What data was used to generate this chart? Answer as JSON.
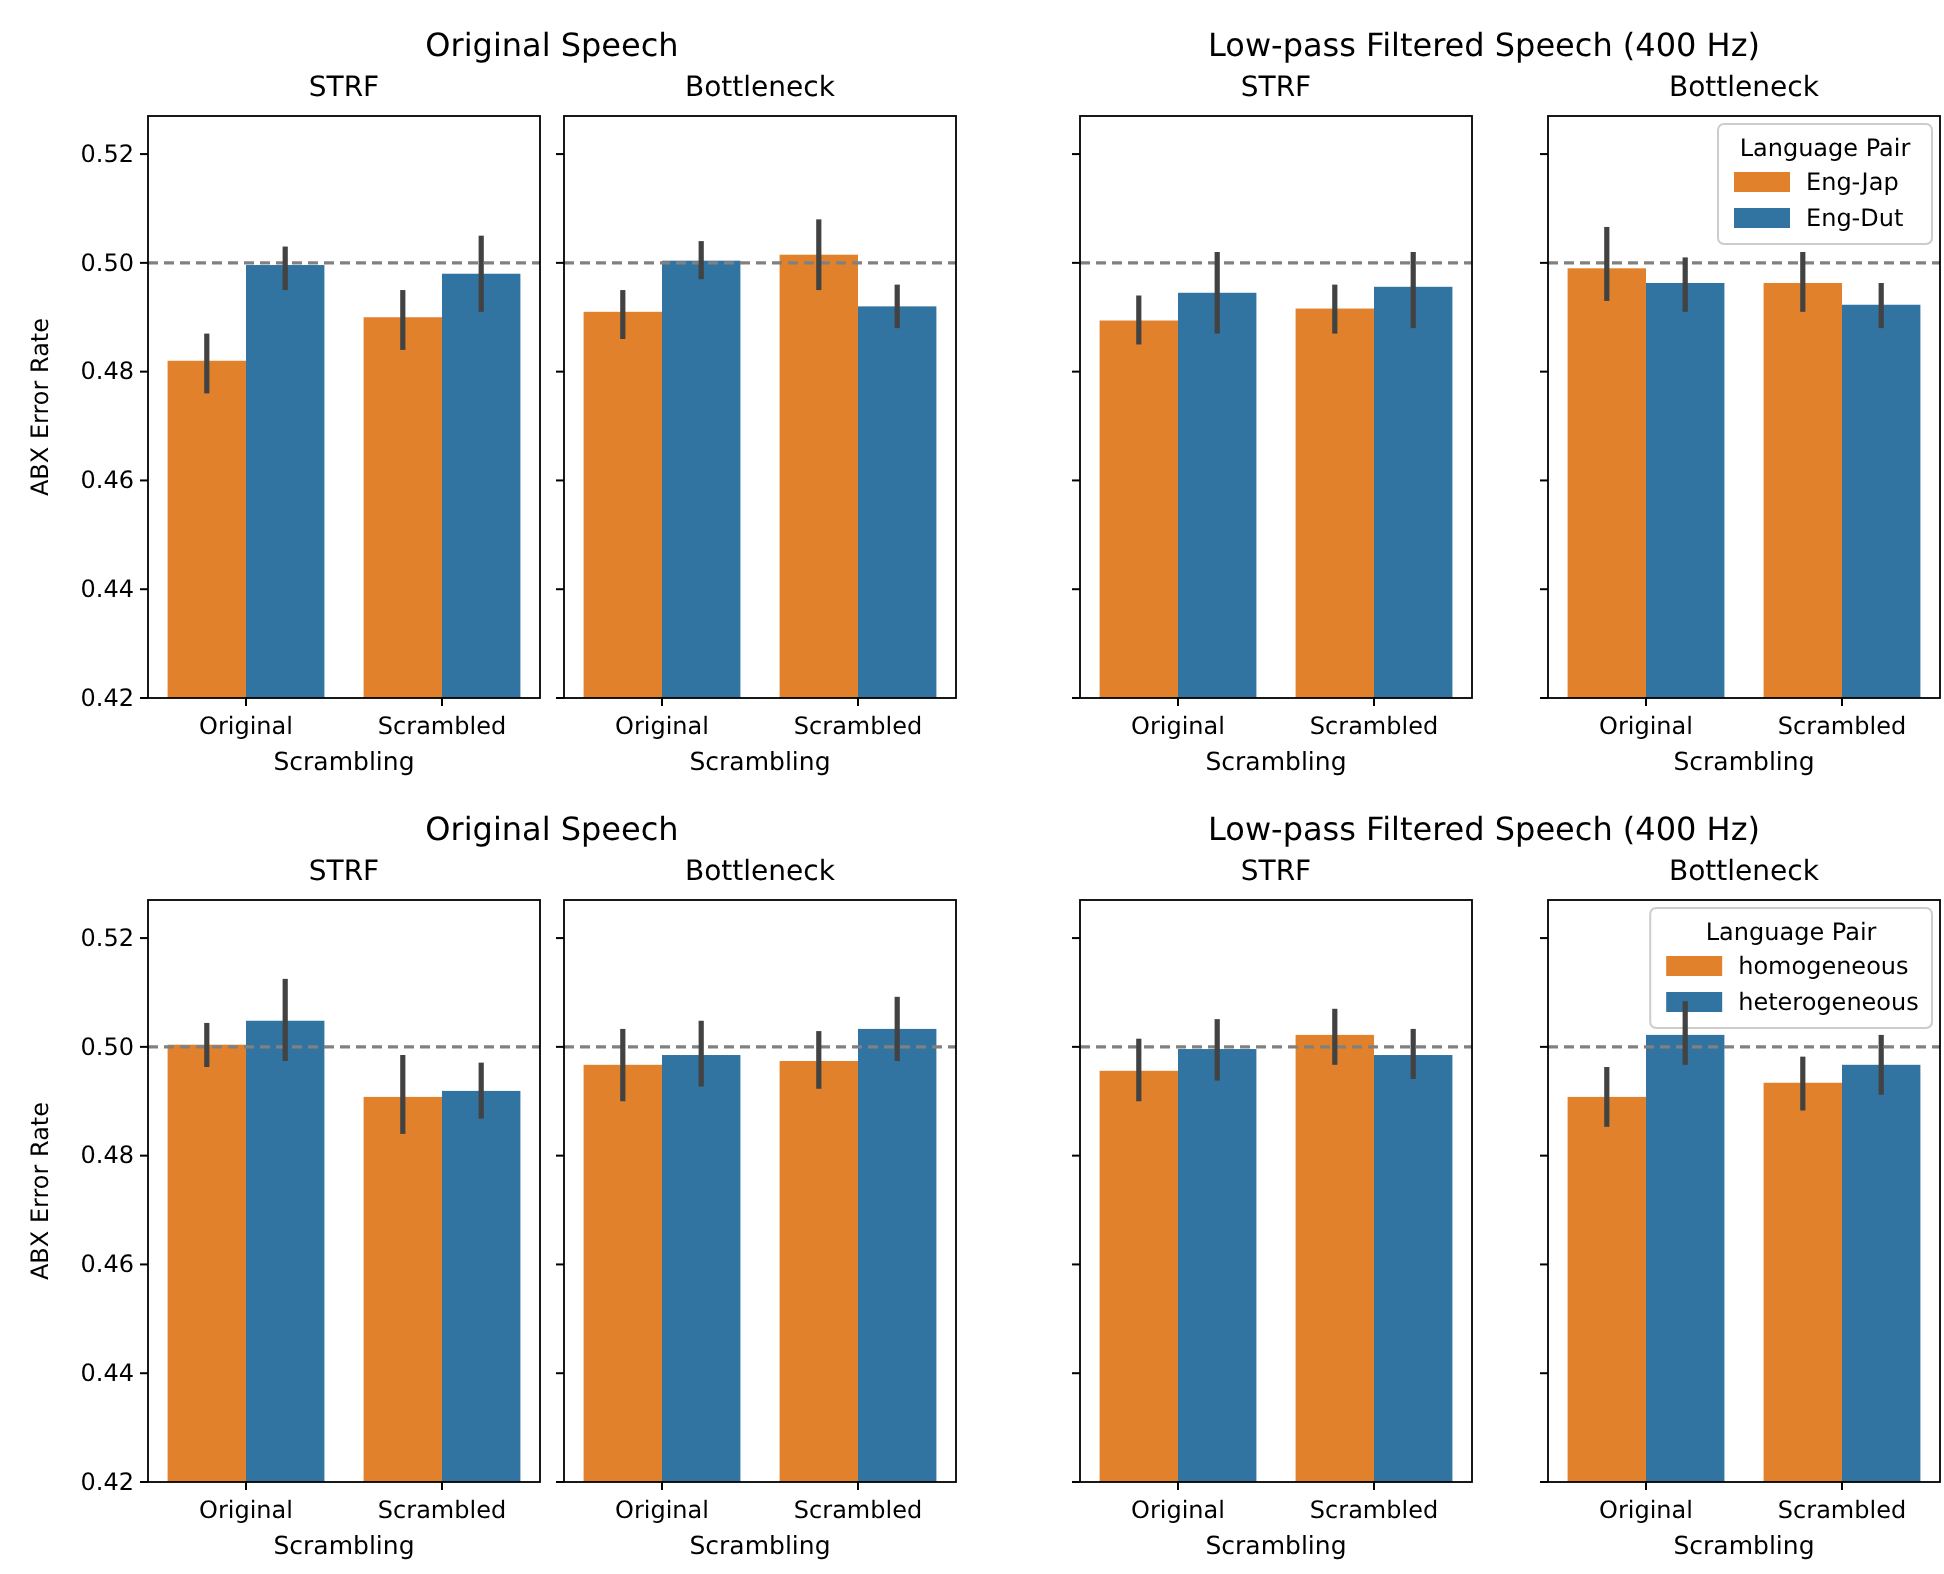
{
  "chart_data": [
    {
      "type": "bar",
      "title": "Original Speech",
      "subtitle": "STRF",
      "xlabel": "Scrambling",
      "ylabel": "ABX Error Rate",
      "categories": [
        "Original",
        "Scrambled"
      ],
      "ylim": [
        0.42,
        0.527
      ],
      "yticks": [
        {
          "value": 0.42,
          "label": "0.42"
        },
        {
          "value": 0.44,
          "label": "0.44"
        },
        {
          "value": 0.46,
          "label": "0.46"
        },
        {
          "value": 0.48,
          "label": "0.48"
        },
        {
          "value": 0.5,
          "label": "0.50"
        },
        {
          "value": 0.52,
          "label": "0.52"
        }
      ],
      "ref_lines": [
        {
          "axis": "y",
          "value": 0.5,
          "color": "#808080",
          "line_style": "dashed"
        }
      ],
      "grid": false,
      "legend": false,
      "series": [
        {
          "color": "#e1812c",
          "values": [
            0.482,
            0.49
          ],
          "errors": [
            [
              0.476,
              0.487
            ],
            [
              0.484,
              0.495
            ]
          ]
        },
        {
          "color": "#3274a1",
          "values": [
            0.4996,
            0.498
          ],
          "errors": [
            [
              0.495,
              0.503
            ],
            [
              0.491,
              0.505
            ]
          ]
        }
      ]
    },
    {
      "type": "bar",
      "title": "Bottleneck",
      "xlabel": "Scrambling",
      "categories": [
        "Original",
        "Scrambled"
      ],
      "ylim": [
        0.42,
        0.527
      ],
      "yticks": [
        {
          "value": 0.42,
          "label": null
        },
        {
          "value": 0.44,
          "label": null
        },
        {
          "value": 0.46,
          "label": null
        },
        {
          "value": 0.48,
          "label": null
        },
        {
          "value": 0.5,
          "label": null
        },
        {
          "value": 0.52,
          "label": null
        }
      ],
      "tick_labels": "x",
      "ref_lines": [
        {
          "axis": "y",
          "value": 0.5,
          "color": "#808080",
          "line_style": "dashed"
        }
      ],
      "grid": false,
      "legend": false,
      "series": [
        {
          "color": "#e1812c",
          "values": [
            0.491,
            0.5015
          ],
          "errors": [
            [
              0.486,
              0.495
            ],
            [
              0.495,
              0.508
            ]
          ]
        },
        {
          "color": "#3274a1",
          "values": [
            0.5004,
            0.492
          ],
          "errors": [
            [
              0.497,
              0.504
            ],
            [
              0.488,
              0.496
            ]
          ]
        }
      ]
    },
    {
      "type": "bar",
      "title": "Low-pass Filtered Speech (400 Hz)",
      "subtitle": "STRF",
      "xlabel": "Scrambling",
      "categories": [
        "Original",
        "Scrambled"
      ],
      "ylim": [
        0.42,
        0.527
      ],
      "yticks": [
        {
          "value": 0.42,
          "label": null
        },
        {
          "value": 0.44,
          "label": null
        },
        {
          "value": 0.46,
          "label": null
        },
        {
          "value": 0.48,
          "label": null
        },
        {
          "value": 0.5,
          "label": null
        },
        {
          "value": 0.52,
          "label": null
        }
      ],
      "tick_labels": "x",
      "ref_lines": [
        {
          "axis": "y",
          "value": 0.5,
          "color": "#808080",
          "line_style": "dashed"
        }
      ],
      "grid": false,
      "legend": false,
      "series": [
        {
          "color": "#e1812c",
          "values": [
            0.4894,
            0.4916
          ],
          "errors": [
            [
              0.485,
              0.494
            ],
            [
              0.487,
              0.496
            ]
          ]
        },
        {
          "color": "#3274a1",
          "values": [
            0.4945,
            0.4956
          ],
          "errors": [
            [
              0.487,
              0.502
            ],
            [
              0.488,
              0.502
            ]
          ]
        }
      ]
    },
    {
      "type": "bar",
      "title": "Bottleneck",
      "xlabel": "Scrambling",
      "categories": [
        "Original",
        "Scrambled"
      ],
      "ylim": [
        0.42,
        0.527
      ],
      "yticks": [
        {
          "value": 0.42,
          "label": null
        },
        {
          "value": 0.44,
          "label": null
        },
        {
          "value": 0.46,
          "label": null
        },
        {
          "value": 0.48,
          "label": null
        },
        {
          "value": 0.5,
          "label": null
        },
        {
          "value": 0.52,
          "label": null
        }
      ],
      "tick_labels": "x",
      "ref_lines": [
        {
          "axis": "y",
          "value": 0.5,
          "color": "#808080",
          "line_style": "dashed"
        }
      ],
      "grid": false,
      "legend": "top right",
      "legend_title": "Language Pair",
      "series": [
        {
          "name": "Eng-Jap",
          "color": "#e1812c",
          "values": [
            0.499,
            0.4963
          ],
          "errors": [
            [
              0.493,
              0.5066
            ],
            [
              0.491,
              0.502
            ]
          ]
        },
        {
          "name": "Eng-Dut",
          "color": "#3274a1",
          "values": [
            0.4963,
            0.4923
          ],
          "errors": [
            [
              0.491,
              0.501
            ],
            [
              0.488,
              0.4963
            ]
          ]
        }
      ]
    },
    {
      "type": "bar",
      "title": "Original Speech",
      "subtitle": "STRF",
      "xlabel": "Scrambling",
      "ylabel": "ABX Error Rate",
      "categories": [
        "Original",
        "Scrambled"
      ],
      "ylim": [
        0.42,
        0.527
      ],
      "yticks": [
        {
          "value": 0.42,
          "label": "0.42"
        },
        {
          "value": 0.44,
          "label": "0.44"
        },
        {
          "value": 0.46,
          "label": "0.46"
        },
        {
          "value": 0.48,
          "label": "0.48"
        },
        {
          "value": 0.5,
          "label": "0.50"
        },
        {
          "value": 0.52,
          "label": "0.52"
        }
      ],
      "ref_lines": [
        {
          "axis": "y",
          "value": 0.5,
          "color": "#808080",
          "line_style": "dashed"
        }
      ],
      "grid": false,
      "legend": false,
      "series": [
        {
          "color": "#e1812c",
          "values": [
            0.5004,
            0.4908
          ],
          "errors": [
            [
              0.4963,
              0.5044
            ],
            [
              0.484,
              0.4985
            ]
          ]
        },
        {
          "color": "#3274a1",
          "values": [
            0.5048,
            0.4919
          ],
          "errors": [
            [
              0.4974,
              0.5125
            ],
            [
              0.4868,
              0.4971
            ]
          ]
        }
      ]
    },
    {
      "type": "bar",
      "title": "Bottleneck",
      "xlabel": "Scrambling",
      "categories": [
        "Original",
        "Scrambled"
      ],
      "ylim": [
        0.42,
        0.527
      ],
      "yticks": [
        {
          "value": 0.42,
          "label": null
        },
        {
          "value": 0.44,
          "label": null
        },
        {
          "value": 0.46,
          "label": null
        },
        {
          "value": 0.48,
          "label": null
        },
        {
          "value": 0.5,
          "label": null
        },
        {
          "value": 0.52,
          "label": null
        }
      ],
      "tick_labels": "x",
      "ref_lines": [
        {
          "axis": "y",
          "value": 0.5,
          "color": "#808080",
          "line_style": "dashed"
        }
      ],
      "grid": false,
      "legend": false,
      "series": [
        {
          "color": "#e1812c",
          "values": [
            0.4967,
            0.4974
          ],
          "errors": [
            [
              0.49,
              0.5033
            ],
            [
              0.4923,
              0.5029
            ]
          ]
        },
        {
          "color": "#3274a1",
          "values": [
            0.4985,
            0.5033
          ],
          "errors": [
            [
              0.4927,
              0.5048
            ],
            [
              0.4974,
              0.5092
            ]
          ]
        }
      ]
    },
    {
      "type": "bar",
      "title": "Low-pass Filtered Speech (400 Hz)",
      "subtitle": "STRF",
      "xlabel": "Scrambling",
      "categories": [
        "Original",
        "Scrambled"
      ],
      "ylim": [
        0.42,
        0.527
      ],
      "yticks": [
        {
          "value": 0.42,
          "label": null
        },
        {
          "value": 0.44,
          "label": null
        },
        {
          "value": 0.46,
          "label": null
        },
        {
          "value": 0.48,
          "label": null
        },
        {
          "value": 0.5,
          "label": null
        },
        {
          "value": 0.52,
          "label": null
        }
      ],
      "tick_labels": "x",
      "ref_lines": [
        {
          "axis": "y",
          "value": 0.5,
          "color": "#808080",
          "line_style": "dashed"
        }
      ],
      "grid": false,
      "legend": false,
      "series": [
        {
          "color": "#e1812c",
          "values": [
            0.4956,
            0.5022
          ],
          "errors": [
            [
              0.49,
              0.5015
            ],
            [
              0.4967,
              0.507
            ]
          ]
        },
        {
          "color": "#3274a1",
          "values": [
            0.4996,
            0.4985
          ],
          "errors": [
            [
              0.4938,
              0.5051
            ],
            [
              0.4941,
              0.5033
            ]
          ]
        }
      ]
    },
    {
      "type": "bar",
      "title": "Bottleneck",
      "xlabel": "Scrambling",
      "categories": [
        "Original",
        "Scrambled"
      ],
      "ylim": [
        0.42,
        0.527
      ],
      "yticks": [
        {
          "value": 0.42,
          "label": null
        },
        {
          "value": 0.44,
          "label": null
        },
        {
          "value": 0.46,
          "label": null
        },
        {
          "value": 0.48,
          "label": null
        },
        {
          "value": 0.5,
          "label": null
        },
        {
          "value": 0.52,
          "label": null
        }
      ],
      "tick_labels": "x",
      "ref_lines": [
        {
          "axis": "y",
          "value": 0.5,
          "color": "#808080",
          "line_style": "dashed"
        }
      ],
      "grid": false,
      "legend": "top right",
      "legend_title": "Language Pair",
      "series": [
        {
          "name": "homogeneous",
          "color": "#e1812c",
          "values": [
            0.4908,
            0.4934
          ],
          "errors": [
            [
              0.4853,
              0.4963
            ],
            [
              0.4883,
              0.4982
            ]
          ]
        },
        {
          "name": "heterogeneous",
          "color": "#3274a1",
          "values": [
            0.5022,
            0.4967
          ],
          "errors": [
            [
              0.4967,
              0.5084
            ],
            [
              0.4912,
              0.5022
            ]
          ]
        }
      ]
    }
  ]
}
